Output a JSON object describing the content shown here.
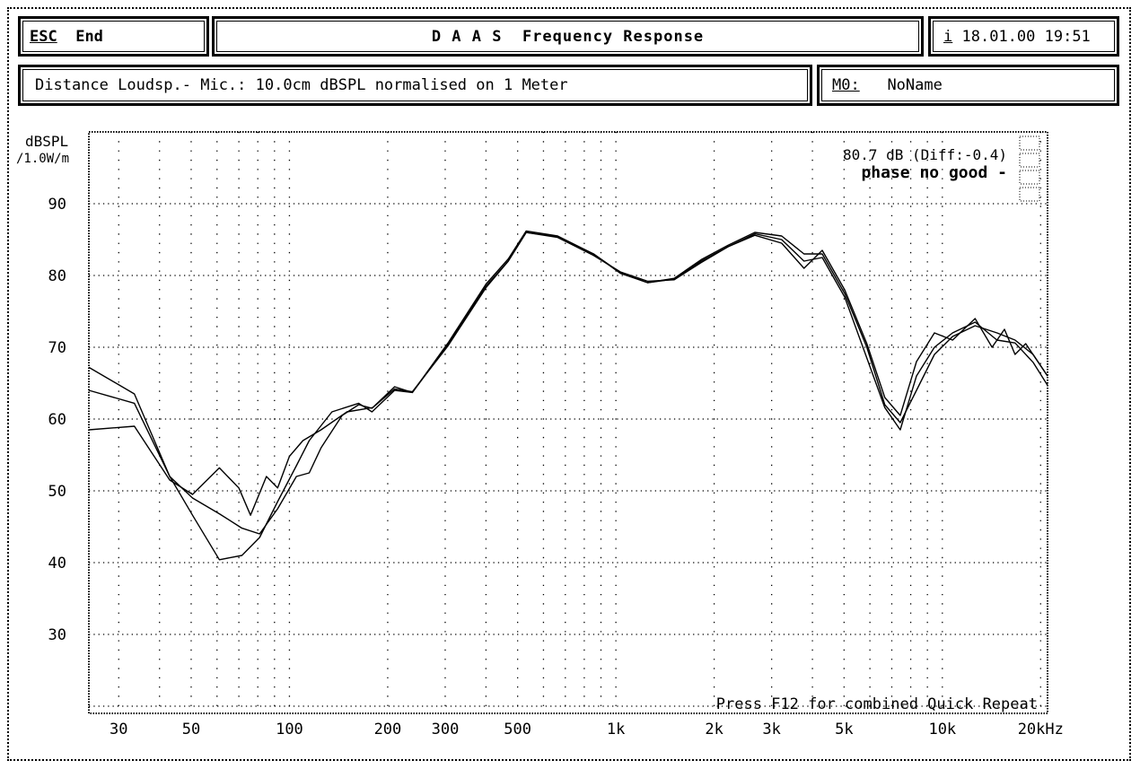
{
  "header": {
    "esc_key": "ESC",
    "esc_label": "End",
    "title": "D A A S  Frequency Response",
    "info_key": "i",
    "datetime": "18.01.00 19:51"
  },
  "subheader": {
    "distance_info": "Distance Loudsp.- Mic.: 10.0cm dBSPL normalised on 1 Meter",
    "memory_key": "M0:",
    "memory_name": "NoName"
  },
  "chart_data": {
    "type": "line",
    "title": "",
    "ylabel": "dBSPL",
    "ylabel_unit": "/1.0W/m",
    "xlabel_unit": "kHz",
    "x_scale": "log",
    "xlim": [
      24.3,
      21000
    ],
    "ylim": [
      19,
      100
    ],
    "grid": true,
    "x_ticks": [
      30,
      50,
      100,
      200,
      300,
      500,
      1000,
      2000,
      3000,
      5000,
      10000,
      20000
    ],
    "x_tick_labels": [
      "30",
      "50",
      "100",
      "200",
      "300",
      "500",
      "1k",
      "2k",
      "3k",
      "5k",
      "10k",
      "20kHz"
    ],
    "y_ticks": [
      30,
      40,
      50,
      60,
      70,
      80,
      90
    ],
    "y_tick_labels": [
      "30",
      "40",
      "50",
      "60",
      "70",
      "80",
      "90"
    ],
    "annotation_level": "80.7 dB (Diff:-0.4)",
    "annotation_phase": "phase no good -",
    "footer_hint": "Press F12 for combined Quick Repeat",
    "line_color": "#000000",
    "series": [
      {
        "points": [
          [
            24.3,
            67.2
          ],
          [
            33.5,
            63.5
          ],
          [
            43,
            52
          ],
          [
            50.5,
            46.6
          ],
          [
            61,
            40.4
          ],
          [
            71.5,
            41
          ],
          [
            81,
            43.5
          ],
          [
            92,
            48.5
          ],
          [
            105,
            53.5
          ],
          [
            115,
            57
          ],
          [
            135,
            61
          ],
          [
            163,
            62.2
          ],
          [
            179,
            61
          ],
          [
            210,
            64
          ],
          [
            238,
            63.7
          ],
          [
            306,
            70.4
          ],
          [
            400,
            78.5
          ],
          [
            468,
            82
          ],
          [
            531,
            86
          ],
          [
            663,
            85.4
          ],
          [
            854,
            83
          ],
          [
            1032,
            80.4
          ],
          [
            1250,
            79
          ],
          [
            1509,
            79.5
          ],
          [
            1824,
            82
          ],
          [
            2205,
            84
          ],
          [
            2665,
            85.8
          ],
          [
            3220,
            85
          ],
          [
            3770,
            82
          ],
          [
            4285,
            82.5
          ],
          [
            5020,
            77
          ],
          [
            5870,
            68.5
          ],
          [
            6665,
            61.6
          ],
          [
            7430,
            58.5
          ],
          [
            8330,
            66
          ],
          [
            9460,
            70
          ],
          [
            10750,
            72
          ],
          [
            12600,
            73.5
          ],
          [
            14700,
            71
          ],
          [
            16700,
            70.6
          ],
          [
            18960,
            67.9
          ],
          [
            21000,
            64.7
          ]
        ]
      },
      {
        "points": [
          [
            24.3,
            64
          ],
          [
            33.5,
            62.2
          ],
          [
            43,
            52
          ],
          [
            50.5,
            49
          ],
          [
            61,
            46.8
          ],
          [
            71.5,
            44.8
          ],
          [
            81,
            44
          ],
          [
            92,
            47.5
          ],
          [
            105,
            52
          ],
          [
            115,
            52.5
          ],
          [
            125,
            56
          ],
          [
            145,
            60.5
          ],
          [
            163,
            62
          ],
          [
            179,
            61.5
          ],
          [
            210,
            64.5
          ],
          [
            238,
            63.7
          ],
          [
            306,
            70.6
          ],
          [
            400,
            78.8
          ],
          [
            468,
            82.3
          ],
          [
            531,
            86.2
          ],
          [
            663,
            85.5
          ],
          [
            854,
            83
          ],
          [
            1032,
            80.3
          ],
          [
            1250,
            79
          ],
          [
            1509,
            79.6
          ],
          [
            1824,
            82.2
          ],
          [
            2205,
            84.2
          ],
          [
            2665,
            86
          ],
          [
            3220,
            85.5
          ],
          [
            3770,
            83
          ],
          [
            4285,
            83
          ],
          [
            5020,
            77.5
          ],
          [
            5870,
            70
          ],
          [
            6665,
            62
          ],
          [
            7430,
            59.5
          ],
          [
            8330,
            64
          ],
          [
            9460,
            69
          ],
          [
            10750,
            71.5
          ],
          [
            12600,
            73
          ],
          [
            14700,
            72
          ],
          [
            16700,
            71
          ],
          [
            18960,
            69
          ],
          [
            21000,
            66
          ]
        ]
      },
      {
        "points": [
          [
            24.3,
            58.5
          ],
          [
            33.5,
            59
          ],
          [
            43,
            51.5
          ],
          [
            50.5,
            49.5
          ],
          [
            61,
            53.2
          ],
          [
            70,
            50.4
          ],
          [
            76,
            46.6
          ],
          [
            85,
            52
          ],
          [
            92,
            50.4
          ],
          [
            100,
            54.8
          ],
          [
            110,
            57
          ],
          [
            125,
            58.5
          ],
          [
            150,
            61
          ],
          [
            180,
            61.6
          ],
          [
            210,
            64.2
          ],
          [
            238,
            63.8
          ],
          [
            306,
            70.2
          ],
          [
            400,
            78.3
          ],
          [
            468,
            82
          ],
          [
            531,
            86
          ],
          [
            663,
            85.3
          ],
          [
            854,
            82.8
          ],
          [
            1032,
            80.5
          ],
          [
            1250,
            79.2
          ],
          [
            1509,
            79.4
          ],
          [
            1824,
            81.8
          ],
          [
            2205,
            84
          ],
          [
            2665,
            85.6
          ],
          [
            3220,
            84.5
          ],
          [
            3770,
            81
          ],
          [
            4285,
            83.5
          ],
          [
            5020,
            78
          ],
          [
            5870,
            70.5
          ],
          [
            6665,
            63
          ],
          [
            7430,
            60.5
          ],
          [
            8330,
            68
          ],
          [
            9460,
            72
          ],
          [
            10750,
            71
          ],
          [
            12600,
            74
          ],
          [
            14200,
            70
          ],
          [
            15500,
            72.5
          ],
          [
            16700,
            69
          ],
          [
            18000,
            70.5
          ],
          [
            21000,
            66
          ]
        ]
      }
    ]
  }
}
